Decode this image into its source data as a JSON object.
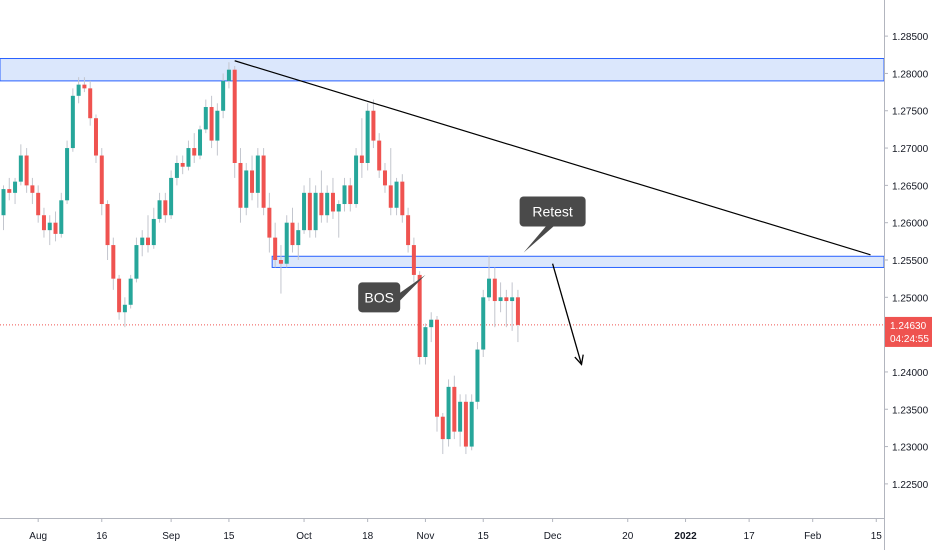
{
  "chart_data": {
    "type": "candlestick",
    "title": "",
    "xlabel": "",
    "ylabel": "",
    "ylim": [
      1.2215,
      1.2885
    ],
    "y_ticks": [
      "1.28500",
      "1.28000",
      "1.27500",
      "1.27000",
      "1.26500",
      "1.26000",
      "1.25500",
      "1.25000",
      "1.24500",
      "1.24000",
      "1.23500",
      "1.23000",
      "1.22500"
    ],
    "y_tick_values": [
      1.285,
      1.28,
      1.275,
      1.27,
      1.265,
      1.26,
      1.255,
      1.25,
      1.245,
      1.24,
      1.235,
      1.23,
      1.225
    ],
    "x_ticks": [
      {
        "label": "Aug",
        "index": 6
      },
      {
        "label": "16",
        "index": 17
      },
      {
        "label": "Sep",
        "index": 29
      },
      {
        "label": "15",
        "index": 39
      },
      {
        "label": "Oct",
        "index": 52
      },
      {
        "label": "18",
        "index": 63
      },
      {
        "label": "Nov",
        "index": 73
      },
      {
        "label": "15",
        "index": 83
      },
      {
        "label": "Dec",
        "index": 95
      },
      {
        "label": "20",
        "index": 108
      },
      {
        "label": "2022",
        "index": 118,
        "bold": true
      },
      {
        "label": "17",
        "index": 129
      },
      {
        "label": "Feb",
        "index": 140
      },
      {
        "label": "15",
        "index": 151
      }
    ],
    "candles": [
      [
        1.261,
        1.265,
        1.259,
        1.2645
      ],
      [
        1.2645,
        1.266,
        1.263,
        1.264
      ],
      [
        1.264,
        1.266,
        1.2625,
        1.2655
      ],
      [
        1.2655,
        1.2705,
        1.265,
        1.269
      ],
      [
        1.269,
        1.27,
        1.264,
        1.265
      ],
      [
        1.265,
        1.266,
        1.2625,
        1.264
      ],
      [
        1.264,
        1.265,
        1.26,
        1.261
      ],
      [
        1.261,
        1.262,
        1.258,
        1.259
      ],
      [
        1.259,
        1.261,
        1.257,
        1.26
      ],
      [
        1.26,
        1.2615,
        1.2575,
        1.2585
      ],
      [
        1.2585,
        1.264,
        1.258,
        1.263
      ],
      [
        1.263,
        1.271,
        1.2625,
        1.27
      ],
      [
        1.27,
        1.278,
        1.2695,
        1.277
      ],
      [
        1.277,
        1.2795,
        1.276,
        1.2785
      ],
      [
        1.2785,
        1.2795,
        1.2775,
        1.278
      ],
      [
        1.278,
        1.279,
        1.273,
        1.274
      ],
      [
        1.274,
        1.2745,
        1.268,
        1.269
      ],
      [
        1.269,
        1.27,
        1.261,
        1.2625
      ],
      [
        1.2625,
        1.263,
        1.255,
        1.257
      ],
      [
        1.257,
        1.258,
        1.251,
        1.2525
      ],
      [
        1.2525,
        1.253,
        1.247,
        1.248
      ],
      [
        1.248,
        1.25,
        1.246,
        1.249
      ],
      [
        1.249,
        1.253,
        1.2485,
        1.2525
      ],
      [
        1.2525,
        1.258,
        1.252,
        1.257
      ],
      [
        1.257,
        1.259,
        1.2555,
        1.258
      ],
      [
        1.258,
        1.261,
        1.256,
        1.257
      ],
      [
        1.257,
        1.262,
        1.2565,
        1.2605
      ],
      [
        1.2605,
        1.264,
        1.26,
        1.263
      ],
      [
        1.263,
        1.264,
        1.26,
        1.261
      ],
      [
        1.261,
        1.267,
        1.2605,
        1.266
      ],
      [
        1.266,
        1.269,
        1.265,
        1.268
      ],
      [
        1.268,
        1.269,
        1.2665,
        1.2675
      ],
      [
        1.2675,
        1.271,
        1.267,
        1.27
      ],
      [
        1.27,
        1.272,
        1.268,
        1.269
      ],
      [
        1.269,
        1.273,
        1.2685,
        1.2725
      ],
      [
        1.2725,
        1.2765,
        1.272,
        1.2755
      ],
      [
        1.2755,
        1.277,
        1.27,
        1.271
      ],
      [
        1.271,
        1.276,
        1.269,
        1.275
      ],
      [
        1.275,
        1.28,
        1.274,
        1.279
      ],
      [
        1.279,
        1.2815,
        1.278,
        1.2805
      ],
      [
        1.2805,
        1.281,
        1.266,
        1.268
      ],
      [
        1.268,
        1.27,
        1.26,
        1.262
      ],
      [
        1.262,
        1.268,
        1.261,
        1.267
      ],
      [
        1.267,
        1.269,
        1.263,
        1.264
      ],
      [
        1.264,
        1.27,
        1.262,
        1.269
      ],
      [
        1.269,
        1.27,
        1.261,
        1.262
      ],
      [
        1.262,
        1.264,
        1.256,
        1.258
      ],
      [
        1.258,
        1.26,
        1.254,
        1.255
      ],
      [
        1.255,
        1.257,
        1.2505,
        1.2545
      ],
      [
        1.2545,
        1.261,
        1.254,
        1.26
      ],
      [
        1.26,
        1.262,
        1.256,
        1.257
      ],
      [
        1.257,
        1.26,
        1.255,
        1.259
      ],
      [
        1.259,
        1.265,
        1.2585,
        1.264
      ],
      [
        1.264,
        1.266,
        1.258,
        1.259
      ],
      [
        1.259,
        1.265,
        1.258,
        1.264
      ],
      [
        1.264,
        1.267,
        1.26,
        1.261
      ],
      [
        1.261,
        1.265,
        1.26,
        1.264
      ],
      [
        1.264,
        1.266,
        1.2605,
        1.2615
      ],
      [
        1.2615,
        1.263,
        1.258,
        1.2625
      ],
      [
        1.2625,
        1.266,
        1.2615,
        1.265
      ],
      [
        1.265,
        1.266,
        1.2615,
        1.2625
      ],
      [
        1.2625,
        1.27,
        1.262,
        1.269
      ],
      [
        1.269,
        1.274,
        1.266,
        1.268
      ],
      [
        1.268,
        1.276,
        1.267,
        1.275
      ],
      [
        1.275,
        1.2765,
        1.27,
        1.271
      ],
      [
        1.271,
        1.272,
        1.266,
        1.267
      ],
      [
        1.267,
        1.268,
        1.264,
        1.265
      ],
      [
        1.265,
        1.27,
        1.261,
        1.262
      ],
      [
        1.262,
        1.266,
        1.261,
        1.2655
      ],
      [
        1.2655,
        1.2665,
        1.26,
        1.261
      ],
      [
        1.261,
        1.262,
        1.256,
        1.257
      ],
      [
        1.257,
        1.258,
        1.252,
        1.253
      ],
      [
        1.253,
        1.2535,
        1.241,
        1.242
      ],
      [
        1.242,
        1.2465,
        1.241,
        1.246
      ],
      [
        1.246,
        1.248,
        1.244,
        1.247
      ],
      [
        1.247,
        1.2475,
        1.232,
        1.234
      ],
      [
        1.234,
        1.2345,
        1.229,
        1.231
      ],
      [
        1.231,
        1.239,
        1.23,
        1.238
      ],
      [
        1.238,
        1.2395,
        1.231,
        1.232
      ],
      [
        1.232,
        1.237,
        1.23,
        1.236
      ],
      [
        1.236,
        1.237,
        1.229,
        1.23
      ],
      [
        1.23,
        1.237,
        1.2295,
        1.236
      ],
      [
        1.236,
        1.244,
        1.235,
        1.243
      ],
      [
        1.243,
        1.251,
        1.242,
        1.25
      ],
      [
        1.25,
        1.2555,
        1.2495,
        1.2525
      ],
      [
        1.2525,
        1.254,
        1.246,
        1.2495
      ],
      [
        1.2495,
        1.252,
        1.248,
        1.25
      ],
      [
        1.25,
        1.251,
        1.246,
        1.2495
      ],
      [
        1.2495,
        1.252,
        1.2455,
        1.25
      ],
      [
        1.25,
        1.251,
        1.244,
        1.2463
      ]
    ],
    "zones": [
      {
        "name": "resistance-zone",
        "y1": 1.279,
        "y2": 1.282,
        "from_index": -1,
        "to_index": "end"
      },
      {
        "name": "retest-zone",
        "y1": 1.254,
        "y2": 1.2555,
        "from_index": 47,
        "to_index": "end"
      }
    ],
    "trendline": {
      "from": [
        40,
        1.2817
      ],
      "to": [
        150,
        1.2557
      ]
    },
    "projection_arrow": {
      "from": [
        95,
        1.2545
      ],
      "to": [
        100,
        1.241
      ]
    },
    "last_price": {
      "value": 1.2463,
      "label": "1.24630",
      "countdown": "04:24:55"
    },
    "annotations": [
      {
        "text": "Retest",
        "index": 95,
        "price": 1.2615,
        "pointer": [
          90,
          1.256
        ]
      },
      {
        "text": "BOS",
        "index": 65,
        "price": 1.25,
        "pointer": [
          73,
          1.253
        ]
      }
    ],
    "colors": {
      "up": "#26a69a",
      "down": "#ef5350",
      "wick": "#c3c6ce",
      "zone_fill": "#dbe7fc",
      "zone_border": "#2962ff",
      "trendline": "#000000",
      "price_label": "#ef5350",
      "annotation_bg": "#4a4a4a",
      "annotation_text": "#ffffff",
      "axis_text": "#131722",
      "axis_line": "#b2b5be"
    }
  }
}
